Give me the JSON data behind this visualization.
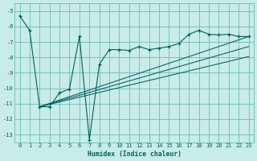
{
  "xlabel": "Humidex (Indice chaleur)",
  "xlim": [
    -0.5,
    23.5
  ],
  "ylim": [
    -13.5,
    -4.5
  ],
  "yticks": [
    -13,
    -12,
    -11,
    -10,
    -9,
    -8,
    -7,
    -6,
    -5
  ],
  "xticks": [
    0,
    1,
    2,
    3,
    4,
    5,
    6,
    7,
    8,
    9,
    10,
    11,
    12,
    13,
    14,
    15,
    16,
    17,
    18,
    19,
    20,
    21,
    22,
    23
  ],
  "bg_color": "#c8ece8",
  "grid_color": "#6abcb0",
  "line_color": "#006060",
  "line_with_markers": {
    "x": [
      0,
      1,
      2,
      3,
      4,
      5,
      6,
      7,
      8,
      9,
      10,
      11,
      12,
      13,
      14,
      15,
      16,
      17,
      18,
      19,
      20,
      21,
      22,
      23
    ],
    "y": [
      -5.3,
      -6.25,
      -11.2,
      -11.2,
      -10.3,
      -10.05,
      -6.65,
      -13.35,
      -8.45,
      -7.5,
      -7.5,
      -7.55,
      -7.3,
      -7.5,
      -7.4,
      -7.3,
      -7.1,
      -6.5,
      -6.25,
      -6.5,
      -6.55,
      -6.5,
      -6.65,
      -6.65
    ]
  },
  "straight_lines": [
    {
      "x": [
        2,
        23
      ],
      "y": [
        -11.2,
        -6.65
      ]
    },
    {
      "x": [
        2,
        23
      ],
      "y": [
        -11.2,
        -7.3
      ]
    },
    {
      "x": [
        2,
        23
      ],
      "y": [
        -11.2,
        -7.95
      ]
    }
  ]
}
